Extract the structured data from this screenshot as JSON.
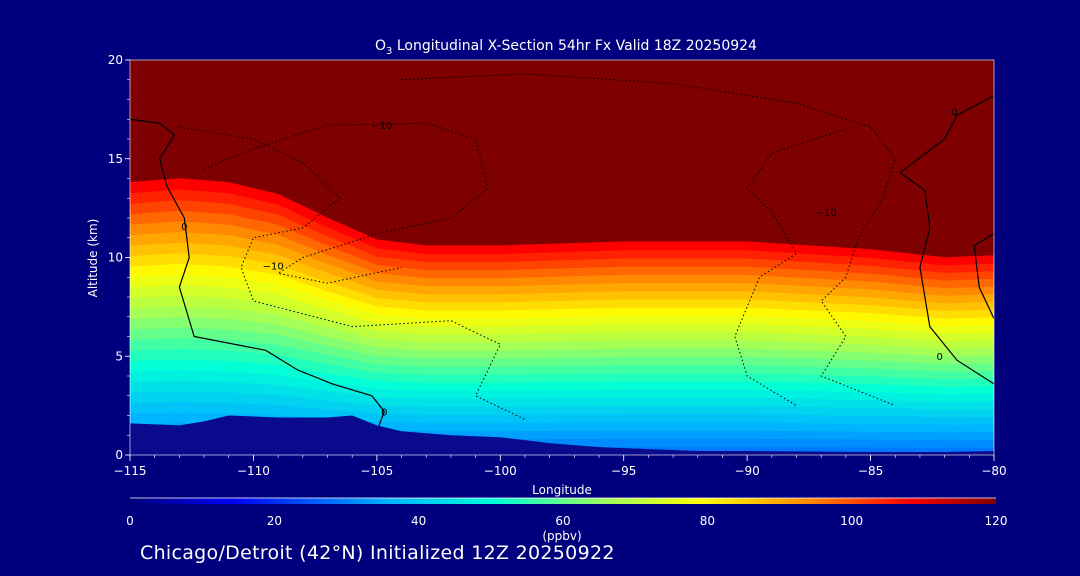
{
  "chart_data": {
    "type": "heatmap",
    "title_parts": {
      "species": "O",
      "subscript": "3",
      "rest": " Longitudinal X-Section 54hr  Fx Valid 18Z 20250924"
    },
    "xlabel": "Longitude",
    "ylabel": "Altitude (km)",
    "xlim": [
      -115,
      -80
    ],
    "ylim": [
      0,
      20
    ],
    "x_ticks": [
      -115,
      -110,
      -105,
      -100,
      -95,
      -90,
      -85,
      -80
    ],
    "x_tick_labels": [
      "−115",
      "−110",
      "−105",
      "−100",
      "−95",
      "−90",
      "−85",
      "−80"
    ],
    "y_ticks": [
      0,
      5,
      10,
      15,
      20
    ],
    "y_tick_labels": [
      "0",
      "5",
      "10",
      "15",
      "20"
    ],
    "colorbar": {
      "range": [
        0,
        120
      ],
      "ticks": [
        0,
        20,
        40,
        60,
        80,
        100,
        120
      ],
      "tick_labels": [
        "0",
        "20",
        "40",
        "60",
        "80",
        "100",
        "120"
      ],
      "units": "(ppbv)"
    },
    "terrain_km": [
      [
        -115,
        1.6
      ],
      [
        -113,
        1.5
      ],
      [
        -112,
        1.7
      ],
      [
        -111,
        2.0
      ],
      [
        -109,
        1.9
      ],
      [
        -107,
        1.9
      ],
      [
        -106,
        2.0
      ],
      [
        -105,
        1.5
      ],
      [
        -104,
        1.2
      ],
      [
        -102,
        1.0
      ],
      [
        -100,
        0.9
      ],
      [
        -98,
        0.6
      ],
      [
        -96,
        0.4
      ],
      [
        -94,
        0.3
      ],
      [
        -92,
        0.2
      ],
      [
        -90,
        0.2
      ],
      [
        -85,
        0.15
      ],
      [
        -82,
        0.15
      ],
      [
        -80,
        0.2
      ]
    ],
    "tropopause_km": [
      [
        -115,
        13.8
      ],
      [
        -113,
        14.0
      ],
      [
        -111,
        13.8
      ],
      [
        -109,
        13.2
      ],
      [
        -107,
        12.0
      ],
      [
        -105,
        10.9
      ],
      [
        -103,
        10.6
      ],
      [
        -100,
        10.6
      ],
      [
        -95,
        10.8
      ],
      [
        -90,
        10.8
      ],
      [
        -85,
        10.4
      ],
      [
        -82,
        10.0
      ],
      [
        -80,
        10.1
      ]
    ],
    "contour_labels": [
      "−10",
      "−10",
      "−10",
      "0",
      "0",
      "0",
      "0"
    ]
  },
  "footer": "Chicago/Detroit (42°N) Initialized 12Z 20250922"
}
